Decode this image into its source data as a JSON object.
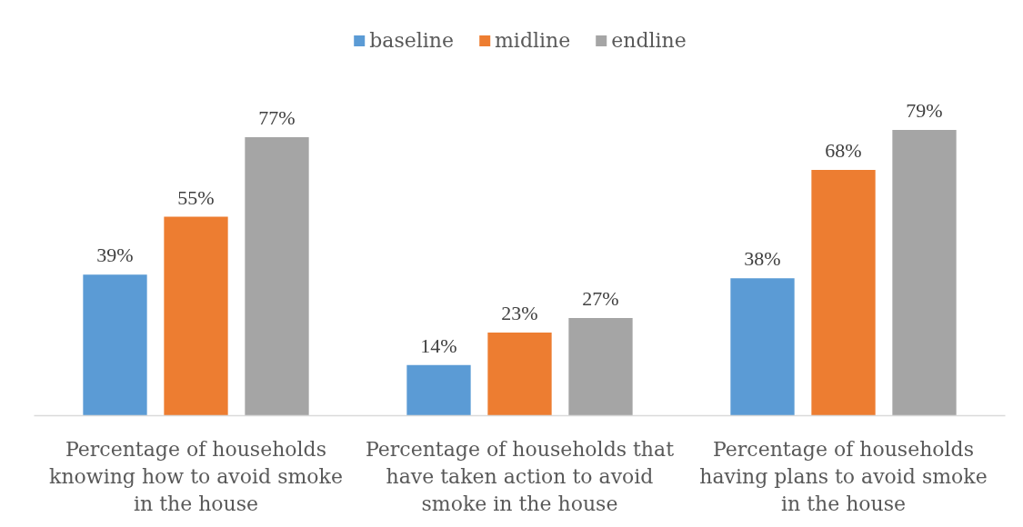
{
  "chart_data": {
    "type": "bar",
    "categories": [
      "Percentage of households knowing how to avoid smoke in the house",
      "Percentage of households that have taken action to avoid smoke in the house",
      "Percentage of households having plans to avoid smoke in the house"
    ],
    "series": [
      {
        "name": "baseline",
        "color": "#5b9bd5",
        "values": [
          39,
          14,
          38
        ],
        "value_labels": [
          "39%",
          "14%",
          "38%"
        ]
      },
      {
        "name": "midline",
        "color": "#ed7d31",
        "values": [
          55,
          23,
          68
        ],
        "value_labels": [
          "55%",
          "23%",
          "68%"
        ]
      },
      {
        "name": "endline",
        "color": "#a5a5a5",
        "values": [
          77,
          27,
          79
        ],
        "value_labels": [
          "77%",
          "27%",
          "79%"
        ]
      }
    ],
    "legend": "top",
    "tick_labels": "x"
  }
}
